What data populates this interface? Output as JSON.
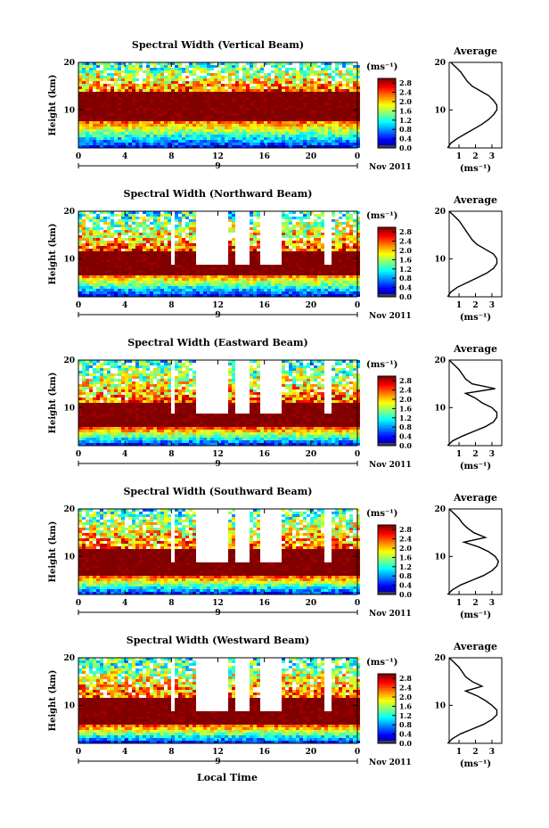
{
  "figure": {
    "xlabel": "Local Time",
    "date_label": "Nov 2011",
    "day_label": "9",
    "colorbar_unit": "(ms⁻¹)",
    "avg_xlabel": "(ms⁻¹)"
  },
  "chart_data": [
    {
      "type": "heatmap",
      "title": "Spectral Width (Vertical Beam)",
      "ylabel": "Height (km)",
      "xlim": [
        0,
        24
      ],
      "ylim": [
        2,
        20
      ],
      "xticks": [
        "0",
        "4",
        "8",
        "12",
        "16",
        "20",
        "0"
      ],
      "yticks": [
        "10",
        "20"
      ],
      "colorbar": {
        "ticks": [
          "0.0",
          "0.4",
          "0.8",
          "1.2",
          "1.6",
          "2.0",
          "2.4",
          "2.8"
        ],
        "range": [
          0,
          3.0
        ]
      },
      "gaps": [],
      "red_band_km": [
        8,
        14
      ],
      "average_profile": {
        "title": "Average",
        "xticks": [
          "1",
          "2",
          "3"
        ],
        "yticks": [
          "10",
          "20"
        ],
        "height_km": [
          2,
          3,
          4,
          5,
          6,
          7,
          8,
          9,
          10,
          11,
          12,
          13,
          14,
          15,
          16,
          17,
          18,
          19,
          20
        ],
        "width_ms": [
          0.3,
          0.5,
          0.9,
          1.4,
          1.9,
          2.4,
          2.8,
          3.1,
          3.3,
          3.3,
          3.1,
          2.8,
          2.3,
          1.8,
          1.5,
          1.3,
          1.1,
          0.8,
          0.5
        ]
      }
    },
    {
      "type": "heatmap",
      "title": "Spectral Width (Northward Beam)",
      "ylabel": "Height (km)",
      "xlim": [
        0,
        24
      ],
      "ylim": [
        2,
        20
      ],
      "xticks": [
        "0",
        "4",
        "8",
        "12",
        "16",
        "20",
        "0"
      ],
      "yticks": [
        "10",
        "20"
      ],
      "colorbar": {
        "ticks": [
          "0.0",
          "0.4",
          "0.8",
          "1.2",
          "1.6",
          "2.0",
          "2.4",
          "2.8"
        ],
        "range": [
          0,
          3.0
        ]
      },
      "gaps": [
        [
          7.8,
          8.2
        ],
        [
          10,
          12.6
        ],
        [
          13.2,
          14.5
        ],
        [
          15.5,
          17.2
        ],
        [
          21,
          21.5
        ]
      ],
      "red_band_km": [
        7,
        12
      ],
      "average_profile": {
        "title": "Average",
        "xticks": [
          "1",
          "2",
          "3"
        ],
        "yticks": [
          "10",
          "20"
        ],
        "height_km": [
          2,
          3,
          4,
          5,
          6,
          7,
          8,
          9,
          10,
          11,
          12,
          13,
          14,
          15,
          16,
          17,
          18,
          19,
          20
        ],
        "width_ms": [
          0.3,
          0.5,
          0.9,
          1.5,
          2.1,
          2.7,
          3.1,
          3.3,
          3.3,
          3.1,
          2.6,
          2.1,
          1.8,
          1.6,
          1.4,
          1.2,
          1.0,
          0.7,
          0.4
        ]
      }
    },
    {
      "type": "heatmap",
      "title": "Spectral Width (Eastward Beam)",
      "ylabel": "Height (km)",
      "xlim": [
        0,
        24
      ],
      "ylim": [
        2,
        20
      ],
      "xticks": [
        "0",
        "4",
        "8",
        "12",
        "16",
        "20",
        "0"
      ],
      "yticks": [
        "10",
        "20"
      ],
      "colorbar": {
        "ticks": [
          "0.0",
          "0.4",
          "0.8",
          "1.2",
          "1.6",
          "2.0",
          "2.4",
          "2.8"
        ],
        "range": [
          0,
          3.0
        ]
      },
      "gaps": [
        [
          7.8,
          8.2
        ],
        [
          10,
          12.6
        ],
        [
          13.2,
          14.5
        ],
        [
          15.5,
          17.2
        ],
        [
          21,
          21.5
        ]
      ],
      "red_band_km": [
        6,
        11
      ],
      "average_profile": {
        "title": "Average",
        "xticks": [
          "1",
          "2",
          "3"
        ],
        "yticks": [
          "10",
          "20"
        ],
        "height_km": [
          2,
          3,
          4,
          5,
          6,
          7,
          8,
          9,
          10,
          11,
          12,
          13,
          14,
          15,
          16,
          17,
          18,
          19,
          20
        ],
        "width_ms": [
          0.3,
          0.6,
          1.2,
          1.9,
          2.6,
          3.1,
          3.3,
          3.3,
          3.0,
          2.4,
          2.0,
          1.4,
          3.2,
          1.8,
          1.4,
          1.2,
          1.0,
          0.7,
          0.4
        ]
      }
    },
    {
      "type": "heatmap",
      "title": "Spectral Width (Southward Beam)",
      "ylabel": "Height (km)",
      "xlim": [
        0,
        24
      ],
      "ylim": [
        2,
        20
      ],
      "xticks": [
        "0",
        "4",
        "8",
        "12",
        "16",
        "20",
        "0"
      ],
      "yticks": [
        "10",
        "20"
      ],
      "colorbar": {
        "ticks": [
          "0.0",
          "0.4",
          "0.8",
          "1.2",
          "1.6",
          "2.0",
          "2.4",
          "2.8"
        ],
        "range": [
          0,
          3.0
        ]
      },
      "gaps": [
        [
          7.8,
          8.2
        ],
        [
          10,
          12.6
        ],
        [
          13.2,
          14.5
        ],
        [
          15.5,
          17.2
        ],
        [
          21,
          21.5
        ]
      ],
      "red_band_km": [
        6,
        12
      ],
      "average_profile": {
        "title": "Average",
        "xticks": [
          "1",
          "2",
          "3"
        ],
        "yticks": [
          "10",
          "20"
        ],
        "height_km": [
          2,
          3,
          4,
          5,
          6,
          7,
          8,
          9,
          10,
          11,
          12,
          13,
          14,
          15,
          16,
          17,
          18,
          19,
          20
        ],
        "width_ms": [
          0.3,
          0.6,
          1.1,
          1.8,
          2.5,
          3.0,
          3.3,
          3.4,
          3.2,
          2.8,
          2.2,
          1.3,
          2.6,
          1.9,
          1.5,
          1.2,
          1.0,
          0.7,
          0.4
        ]
      }
    },
    {
      "type": "heatmap",
      "title": "Spectral Width (Westward Beam)",
      "ylabel": "Height (km)",
      "xlim": [
        0,
        24
      ],
      "ylim": [
        2,
        20
      ],
      "xticks": [
        "0",
        "4",
        "8",
        "12",
        "16",
        "20",
        "0"
      ],
      "yticks": [
        "10",
        "20"
      ],
      "colorbar": {
        "ticks": [
          "0.0",
          "0.4",
          "0.8",
          "1.2",
          "1.6",
          "2.0",
          "2.4",
          "2.8"
        ],
        "range": [
          0,
          3.0
        ]
      },
      "gaps": [
        [
          7.8,
          8.2
        ],
        [
          10,
          12.6
        ],
        [
          13.2,
          14.5
        ],
        [
          15.5,
          17.2
        ],
        [
          21,
          21.5
        ]
      ],
      "red_band_km": [
        6,
        12
      ],
      "average_profile": {
        "title": "Average",
        "xticks": [
          "1",
          "2",
          "3"
        ],
        "yticks": [
          "10",
          "20"
        ],
        "height_km": [
          2,
          3,
          4,
          5,
          6,
          7,
          8,
          9,
          10,
          11,
          12,
          13,
          14,
          15,
          16,
          17,
          18,
          19,
          20
        ],
        "width_ms": [
          0.3,
          0.6,
          1.1,
          1.8,
          2.5,
          3.0,
          3.3,
          3.3,
          3.0,
          2.6,
          2.1,
          1.4,
          2.4,
          1.8,
          1.4,
          1.2,
          1.0,
          0.7,
          0.4
        ]
      }
    }
  ]
}
